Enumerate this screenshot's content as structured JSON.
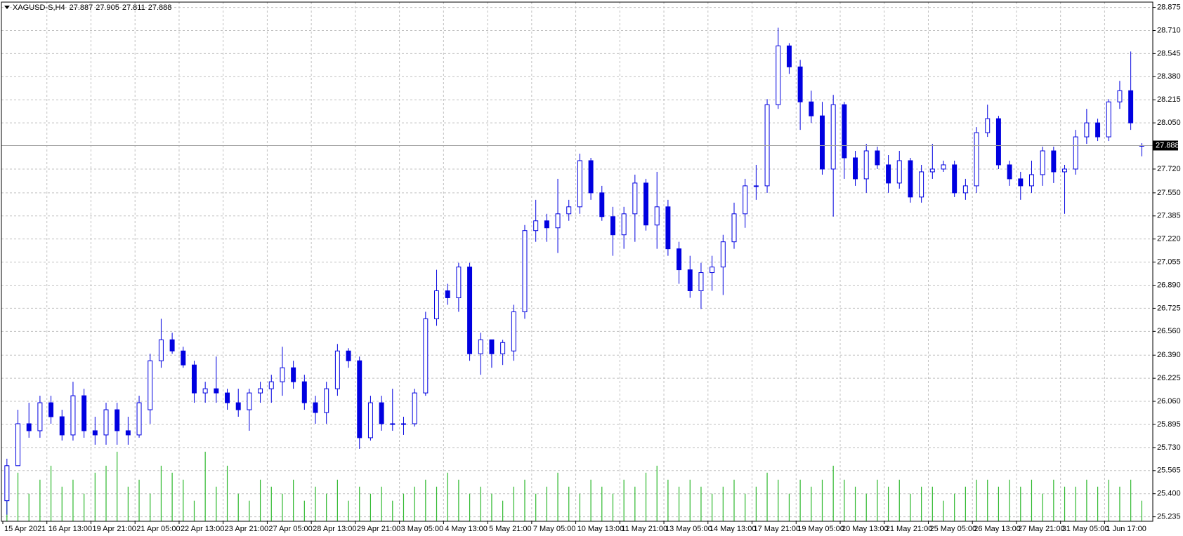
{
  "chart_data": {
    "type": "candlestick",
    "title": "XAGUSD-S,H4",
    "ohlc": [
      27.887,
      27.905,
      27.811,
      27.888
    ],
    "current_price": 27.888,
    "color": "#0000e0",
    "up_fill": "#ffffff",
    "volume_color": "#2db82d",
    "grid": true,
    "ylim": [
      25.203,
      28.913
    ],
    "yticks": [
      28.875,
      {
        "value": 28.71,
        "label": "28.710"
      },
      28.545,
      {
        "value": 28.38,
        "label": "28.380"
      },
      28.215,
      {
        "value": 28.05,
        "label": "28.050"
      },
      {
        "value": 27.72,
        "label": "27.720"
      },
      {
        "value": 27.55,
        "label": "27.550"
      },
      27.385,
      {
        "value": 27.22,
        "label": "27.220"
      },
      27.055,
      {
        "value": 26.89,
        "label": "26.890"
      },
      26.725,
      {
        "value": 26.56,
        "label": "26.560"
      },
      {
        "value": 26.39,
        "label": "26.390"
      },
      26.225,
      {
        "value": 26.06,
        "label": "26.060"
      },
      25.895,
      {
        "value": 25.73,
        "label": "25.730"
      },
      25.565,
      {
        "value": 25.4,
        "label": "25.400"
      },
      25.235
    ],
    "categories": [
      "15 Apr 2021",
      null,
      null,
      null,
      "16 Apr 13:00",
      null,
      null,
      null,
      "19 Apr 21:00",
      null,
      null,
      null,
      "21 Apr 05:00",
      null,
      null,
      null,
      "22 Apr 13:00",
      null,
      null,
      null,
      "23 Apr 21:00",
      null,
      null,
      null,
      "27 Apr 05:00",
      null,
      null,
      null,
      "28 Apr 13:00",
      null,
      null,
      null,
      "29 Apr 21:00",
      null,
      null,
      null,
      "3 May 05:00",
      null,
      null,
      null,
      "4 May 13:00",
      null,
      null,
      null,
      "5 May 21:00",
      null,
      null,
      null,
      "7 May 05:00",
      null,
      null,
      null,
      "10 May 13:00",
      null,
      null,
      null,
      "11 May 21:00",
      null,
      null,
      null,
      "13 May 05:00",
      null,
      null,
      null,
      "14 May 13:00",
      null,
      null,
      null,
      "17 May 21:00",
      null,
      null,
      null,
      "19 May 05:00",
      null,
      null,
      null,
      "20 May 13:00",
      null,
      null,
      null,
      "21 May 21:00",
      null,
      null,
      null,
      "25 May 05:00",
      null,
      null,
      null,
      "26 May 13:00",
      null,
      null,
      null,
      "27 May 21:00",
      null,
      null,
      null,
      "31 May 05:00",
      null,
      null,
      null,
      "1 Jun 17:00",
      null,
      null,
      null
    ],
    "open": [
      25.35,
      25.6,
      25.9,
      25.85,
      26.05,
      25.95,
      25.82,
      26.1,
      25.85,
      25.82,
      26.0,
      25.85,
      25.82,
      26.0,
      26.35,
      26.5,
      26.42,
      26.32,
      26.12,
      26.15,
      26.12,
      26.05,
      26.0,
      26.12,
      26.15,
      26.2,
      26.3,
      26.2,
      26.05,
      25.98,
      26.15,
      26.42,
      26.35,
      25.8,
      26.05,
      25.9,
      25.9,
      25.9,
      26.12,
      26.65,
      26.85,
      26.8,
      27.02,
      26.4,
      26.5,
      26.4,
      26.42,
      26.7,
      27.28,
      27.35,
      27.3,
      27.4,
      27.45,
      27.78,
      27.55,
      27.38,
      27.25,
      27.4,
      27.62,
      27.32,
      27.45,
      27.15,
      27.0,
      26.85,
      26.98,
      27.02,
      27.2,
      27.4,
      27.6,
      27.6,
      28.18,
      28.6,
      28.45,
      28.2,
      28.1,
      27.72,
      28.18,
      27.8,
      27.65,
      27.85,
      27.75,
      27.62,
      27.78,
      27.52,
      27.7,
      27.72,
      27.75,
      27.55,
      27.6,
      27.98,
      28.08,
      27.75,
      27.65,
      27.6,
      27.68,
      27.85,
      27.7,
      27.72,
      27.95,
      28.05,
      27.95,
      28.2,
      28.28,
      27.887
    ],
    "high": [
      25.65,
      26.0,
      26.05,
      26.1,
      26.1,
      26.0,
      26.2,
      26.15,
      25.95,
      26.05,
      26.05,
      25.95,
      26.1,
      26.4,
      26.65,
      26.55,
      26.45,
      26.35,
      26.2,
      26.38,
      26.15,
      26.15,
      26.15,
      26.2,
      26.25,
      26.45,
      26.35,
      26.25,
      26.1,
      26.2,
      26.47,
      26.44,
      26.38,
      26.1,
      26.1,
      26.15,
      25.95,
      26.15,
      26.7,
      27.0,
      26.9,
      27.05,
      27.05,
      26.55,
      26.5,
      26.5,
      26.75,
      27.32,
      27.5,
      27.4,
      27.65,
      27.5,
      27.83,
      27.8,
      27.6,
      27.45,
      27.45,
      27.68,
      27.65,
      27.7,
      27.5,
      27.2,
      27.1,
      27.05,
      27.1,
      27.25,
      27.48,
      27.65,
      27.75,
      28.22,
      28.73,
      28.62,
      28.5,
      28.28,
      28.2,
      28.25,
      28.2,
      27.85,
      27.9,
      27.88,
      27.82,
      27.85,
      27.8,
      27.75,
      27.9,
      27.78,
      27.78,
      27.65,
      28.02,
      28.18,
      28.1,
      27.78,
      27.7,
      27.78,
      27.88,
      27.88,
      27.75,
      28.0,
      28.15,
      28.08,
      28.22,
      28.35,
      28.56,
      27.905
    ],
    "low": [
      25.25,
      25.6,
      25.8,
      25.8,
      25.9,
      25.78,
      25.78,
      25.8,
      25.75,
      25.75,
      25.75,
      25.75,
      25.8,
      25.9,
      26.3,
      26.4,
      26.3,
      26.05,
      26.05,
      26.05,
      26.0,
      25.95,
      25.85,
      26.05,
      26.05,
      26.1,
      26.15,
      26.0,
      25.9,
      25.9,
      26.1,
      26.3,
      25.72,
      25.78,
      25.85,
      25.85,
      25.82,
      25.88,
      26.1,
      26.6,
      26.75,
      26.7,
      26.35,
      26.25,
      26.3,
      26.32,
      26.35,
      26.65,
      27.2,
      27.2,
      27.12,
      27.35,
      27.4,
      27.5,
      27.35,
      27.1,
      27.15,
      27.2,
      27.28,
      27.15,
      27.1,
      26.9,
      26.8,
      26.72,
      26.85,
      26.82,
      27.15,
      27.3,
      27.5,
      27.55,
      28.15,
      28.4,
      28.0,
      28.05,
      27.68,
      27.38,
      27.65,
      27.6,
      27.55,
      27.72,
      27.55,
      27.58,
      27.48,
      27.48,
      27.65,
      27.7,
      27.52,
      27.5,
      27.55,
      27.95,
      27.72,
      27.6,
      27.5,
      27.55,
      27.6,
      27.62,
      27.4,
      27.68,
      27.9,
      27.92,
      27.92,
      28.15,
      28.0,
      27.811
    ],
    "close": [
      25.6,
      25.9,
      25.85,
      26.05,
      25.95,
      25.82,
      26.1,
      25.85,
      25.82,
      26.0,
      25.85,
      25.82,
      26.05,
      26.35,
      26.5,
      26.42,
      26.32,
      26.12,
      26.15,
      26.12,
      26.05,
      26.0,
      26.12,
      26.15,
      26.2,
      26.3,
      26.2,
      26.05,
      25.98,
      26.15,
      26.42,
      26.35,
      25.8,
      26.05,
      25.9,
      25.9,
      25.9,
      26.12,
      26.65,
      26.85,
      26.8,
      27.02,
      26.4,
      26.5,
      26.4,
      26.48,
      26.7,
      27.28,
      27.35,
      27.3,
      27.4,
      27.45,
      27.78,
      27.55,
      27.38,
      27.25,
      27.4,
      27.62,
      27.32,
      27.45,
      27.15,
      27.0,
      26.85,
      26.98,
      27.02,
      27.2,
      27.4,
      27.6,
      27.6,
      28.18,
      28.6,
      28.45,
      28.2,
      28.1,
      27.72,
      28.18,
      27.8,
      27.65,
      27.85,
      27.75,
      27.62,
      27.78,
      27.52,
      27.7,
      27.72,
      27.75,
      27.55,
      27.6,
      27.98,
      28.08,
      27.75,
      27.65,
      27.6,
      27.68,
      27.85,
      27.7,
      27.72,
      27.95,
      28.05,
      27.95,
      28.2,
      28.28,
      28.05,
      27.888
    ],
    "volume": [
      25.45,
      25.55,
      25.4,
      25.5,
      25.6,
      25.45,
      25.5,
      25.4,
      25.55,
      25.6,
      25.7,
      25.45,
      25.5,
      25.4,
      25.6,
      25.55,
      25.5,
      25.35,
      25.7,
      25.45,
      25.6,
      25.4,
      25.35,
      25.5,
      25.45,
      25.4,
      25.5,
      25.35,
      25.45,
      25.4,
      25.5,
      25.35,
      25.45,
      25.4,
      25.45,
      25.35,
      25.4,
      25.45,
      25.5,
      25.45,
      25.55,
      25.5,
      25.4,
      25.45,
      25.4,
      25.35,
      25.45,
      25.5,
      25.4,
      25.45,
      25.55,
      25.45,
      25.4,
      25.5,
      25.45,
      25.4,
      25.5,
      25.45,
      25.55,
      25.6,
      25.5,
      25.45,
      25.5,
      25.45,
      25.4,
      25.45,
      25.5,
      25.4,
      25.45,
      25.55,
      25.5,
      25.4,
      25.5,
      25.45,
      25.5,
      25.6,
      25.5,
      25.45,
      25.4,
      25.5,
      25.45,
      25.5,
      25.4,
      25.45,
      25.45,
      25.35,
      25.4,
      25.45,
      25.5,
      25.5,
      25.45,
      25.5,
      25.45,
      25.5,
      25.4,
      25.5,
      25.45,
      25.45,
      25.5,
      25.45,
      25.5,
      25.45,
      25.5,
      25.35
    ]
  }
}
